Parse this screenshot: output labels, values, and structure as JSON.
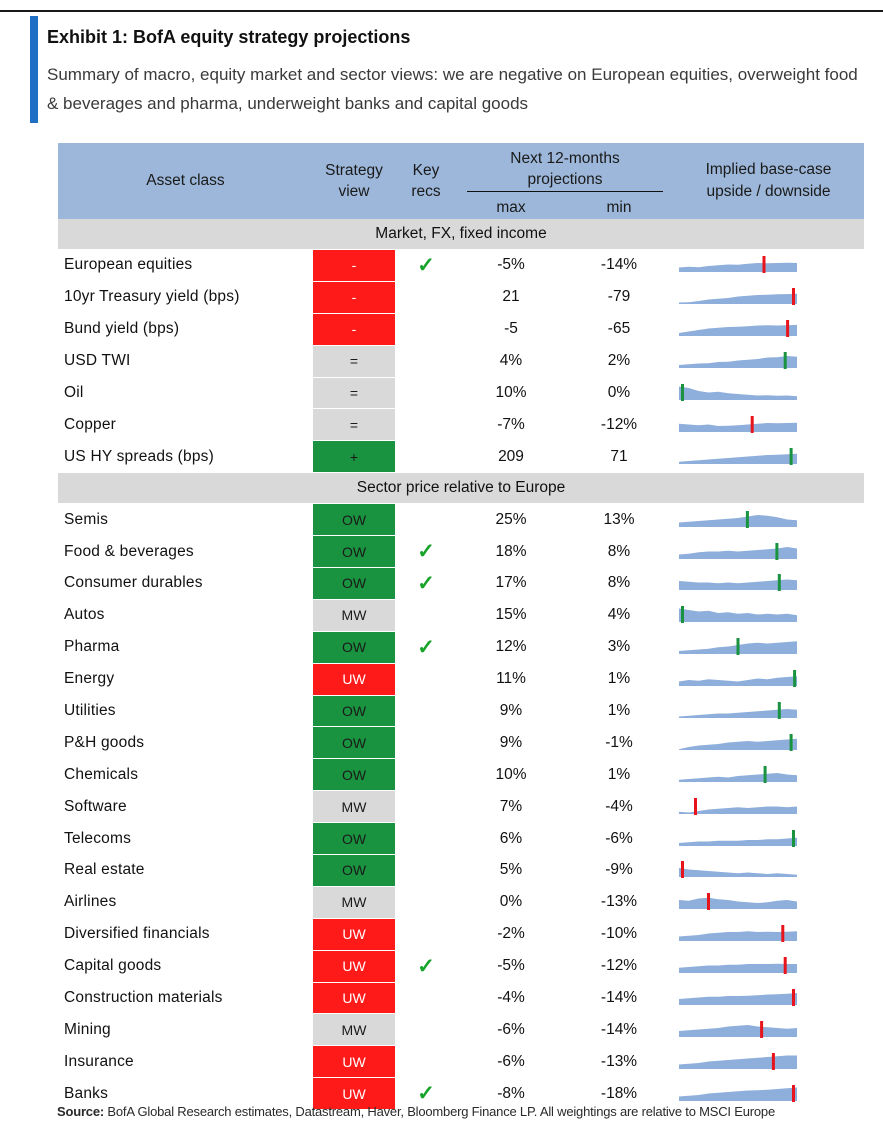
{
  "title": "Exhibit 1: BofA equity strategy projections",
  "subtitle": "Summary of macro, equity market and sector views: we are negative on European equities, overweight food & beverages and pharma, underweight banks and capital goods",
  "headers": {
    "asset_class": "Asset class",
    "strategy_view": "Strategy view",
    "key_recs": "Key recs",
    "projections": "Next 12-months projections",
    "max": "max",
    "min": "min",
    "implied": "Implied base-case upside / downside"
  },
  "sections": [
    {
      "label": "Market, FX, fixed income",
      "rows": [
        {
          "name": "European equities",
          "view": "-",
          "tone": "neg",
          "rec": "✓",
          "max": "-5%",
          "min": "-14%",
          "spark": [
            0.3,
            0.35,
            0.32,
            0.4,
            0.45,
            0.5,
            0.48,
            0.55,
            0.6,
            0.58,
            0.6,
            0.62,
            0.6
          ],
          "marker": 0.72,
          "mcolor": "#e8141c"
        },
        {
          "name": "10yr Treasury yield (bps)",
          "view": "-",
          "tone": "neg",
          "rec": "",
          "max": "21",
          "min": "-79",
          "spark": [
            0.1,
            0.12,
            0.2,
            0.3,
            0.35,
            0.4,
            0.5,
            0.55,
            0.6,
            0.62,
            0.65,
            0.66,
            0.68
          ],
          "marker": 0.97,
          "mcolor": "#e8141c"
        },
        {
          "name": "Bund yield (bps)",
          "view": "-",
          "tone": "neg",
          "rec": "",
          "max": "-5",
          "min": "-65",
          "spark": [
            0.2,
            0.3,
            0.4,
            0.5,
            0.55,
            0.6,
            0.62,
            0.65,
            0.7,
            0.72,
            0.7,
            0.72,
            0.74
          ],
          "marker": 0.92,
          "mcolor": "#e8141c"
        },
        {
          "name": "USD TWI",
          "view": "=",
          "tone": "neutral",
          "rec": "",
          "max": "4%",
          "min": "2%",
          "spark": [
            0.2,
            0.25,
            0.3,
            0.32,
            0.4,
            0.42,
            0.5,
            0.55,
            0.6,
            0.7,
            0.72,
            0.8,
            0.75
          ],
          "marker": 0.9,
          "mcolor": "#19933f"
        },
        {
          "name": "Oil",
          "view": "=",
          "tone": "neutral",
          "rec": "",
          "max": "10%",
          "min": "0%",
          "spark": [
            0.9,
            0.8,
            0.6,
            0.5,
            0.55,
            0.45,
            0.4,
            0.35,
            0.3,
            0.32,
            0.28,
            0.3,
            0.25
          ],
          "marker": 0.03,
          "mcolor": "#19933f"
        },
        {
          "name": "Copper",
          "view": "=",
          "tone": "neutral",
          "rec": "",
          "max": "-7%",
          "min": "-12%",
          "spark": [
            0.55,
            0.5,
            0.45,
            0.5,
            0.4,
            0.42,
            0.45,
            0.5,
            0.55,
            0.6,
            0.58,
            0.6,
            0.62
          ],
          "marker": 0.62,
          "mcolor": "#e8141c"
        },
        {
          "name": "US HY spreads (bps)",
          "view": "+",
          "tone": "pos",
          "rec": "",
          "max": "209",
          "min": "71",
          "spark": [
            0.15,
            0.2,
            0.25,
            0.3,
            0.35,
            0.4,
            0.45,
            0.5,
            0.55,
            0.6,
            0.62,
            0.65,
            0.68
          ],
          "marker": 0.95,
          "mcolor": "#19933f"
        }
      ]
    },
    {
      "label": "Sector price relative to Europe",
      "rows": [
        {
          "name": "Semis",
          "view": "OW",
          "tone": "pos",
          "rec": "",
          "max": "25%",
          "min": "13%",
          "spark": [
            0.3,
            0.35,
            0.4,
            0.45,
            0.5,
            0.55,
            0.6,
            0.7,
            0.8,
            0.75,
            0.65,
            0.5,
            0.45
          ],
          "marker": 0.58,
          "mcolor": "#19933f"
        },
        {
          "name": "Food & beverages",
          "view": "OW",
          "tone": "pos",
          "rec": "✓",
          "max": "18%",
          "min": "8%",
          "spark": [
            0.3,
            0.35,
            0.45,
            0.5,
            0.5,
            0.55,
            0.5,
            0.55,
            0.6,
            0.65,
            0.7,
            0.8,
            0.7
          ],
          "marker": 0.83,
          "mcolor": "#19933f"
        },
        {
          "name": "Consumer durables",
          "view": "OW",
          "tone": "pos",
          "rec": "✓",
          "max": "17%",
          "min": "8%",
          "spark": [
            0.6,
            0.55,
            0.5,
            0.5,
            0.45,
            0.5,
            0.45,
            0.5,
            0.55,
            0.6,
            0.65,
            0.7,
            0.65
          ],
          "marker": 0.85,
          "mcolor": "#19933f"
        },
        {
          "name": "Autos",
          "view": "MW",
          "tone": "neutral",
          "rec": "",
          "max": "15%",
          "min": "4%",
          "spark": [
            0.9,
            0.8,
            0.7,
            0.75,
            0.6,
            0.65,
            0.55,
            0.6,
            0.5,
            0.55,
            0.5,
            0.55,
            0.45
          ],
          "marker": 0.03,
          "mcolor": "#19933f"
        },
        {
          "name": "Pharma",
          "view": "OW",
          "tone": "pos",
          "rec": "✓",
          "max": "12%",
          "min": "3%",
          "spark": [
            0.2,
            0.25,
            0.3,
            0.35,
            0.45,
            0.5,
            0.6,
            0.7,
            0.75,
            0.7,
            0.75,
            0.8,
            0.85
          ],
          "marker": 0.5,
          "mcolor": "#19933f"
        },
        {
          "name": "Energy",
          "view": "UW",
          "tone": "neg",
          "rec": "",
          "max": "11%",
          "min": "1%",
          "spark": [
            0.3,
            0.4,
            0.35,
            0.45,
            0.4,
            0.35,
            0.3,
            0.4,
            0.5,
            0.45,
            0.55,
            0.6,
            0.65
          ],
          "marker": 0.98,
          "mcolor": "#19933f"
        },
        {
          "name": "Utilities",
          "view": "OW",
          "tone": "pos",
          "rec": "",
          "max": "9%",
          "min": "1%",
          "spark": [
            0.1,
            0.15,
            0.2,
            0.25,
            0.3,
            0.3,
            0.35,
            0.4,
            0.45,
            0.5,
            0.55,
            0.6,
            0.55
          ],
          "marker": 0.85,
          "mcolor": "#19933f"
        },
        {
          "name": "P&H goods",
          "view": "OW",
          "tone": "pos",
          "rec": "",
          "max": "9%",
          "min": "-1%",
          "spark": [
            0.05,
            0.2,
            0.3,
            0.35,
            0.4,
            0.5,
            0.55,
            0.6,
            0.55,
            0.6,
            0.65,
            0.7,
            0.75
          ],
          "marker": 0.95,
          "mcolor": "#19933f"
        },
        {
          "name": "Chemicals",
          "view": "OW",
          "tone": "pos",
          "rec": "",
          "max": "10%",
          "min": "1%",
          "spark": [
            0.15,
            0.2,
            0.25,
            0.3,
            0.35,
            0.3,
            0.4,
            0.45,
            0.5,
            0.55,
            0.6,
            0.5,
            0.45
          ],
          "marker": 0.73,
          "mcolor": "#19933f"
        },
        {
          "name": "Software",
          "view": "MW",
          "tone": "neutral",
          "rec": "",
          "max": "7%",
          "min": "-4%",
          "spark": [
            0.15,
            0.1,
            0.2,
            0.3,
            0.35,
            0.4,
            0.45,
            0.4,
            0.45,
            0.5,
            0.5,
            0.45,
            0.5
          ],
          "marker": 0.14,
          "mcolor": "#e8141c"
        },
        {
          "name": "Telecoms",
          "view": "OW",
          "tone": "pos",
          "rec": "",
          "max": "6%",
          "min": "-6%",
          "spark": [
            0.2,
            0.25,
            0.3,
            0.3,
            0.35,
            0.35,
            0.35,
            0.4,
            0.4,
            0.45,
            0.45,
            0.5,
            0.55
          ],
          "marker": 0.97,
          "mcolor": "#19933f"
        },
        {
          "name": "Real estate",
          "view": "OW",
          "tone": "pos",
          "rec": "",
          "max": "5%",
          "min": "-9%",
          "spark": [
            0.6,
            0.5,
            0.45,
            0.4,
            0.35,
            0.3,
            0.25,
            0.3,
            0.25,
            0.2,
            0.25,
            0.2,
            0.15
          ],
          "marker": 0.03,
          "mcolor": "#e8141c"
        },
        {
          "name": "Airlines",
          "view": "MW",
          "tone": "neutral",
          "rec": "",
          "max": "0%",
          "min": "-13%",
          "spark": [
            0.6,
            0.55,
            0.7,
            0.75,
            0.65,
            0.6,
            0.5,
            0.45,
            0.4,
            0.45,
            0.55,
            0.6,
            0.5
          ],
          "marker": 0.25,
          "mcolor": "#e8141c"
        },
        {
          "name": "Diversified financials",
          "view": "UW",
          "tone": "neg",
          "rec": "",
          "max": "-2%",
          "min": "-10%",
          "spark": [
            0.3,
            0.35,
            0.4,
            0.5,
            0.55,
            0.6,
            0.6,
            0.65,
            0.6,
            0.62,
            0.6,
            0.62,
            0.65
          ],
          "marker": 0.88,
          "mcolor": "#e8141c"
        },
        {
          "name": "Capital goods",
          "view": "UW",
          "tone": "neg",
          "rec": "✓",
          "max": "-5%",
          "min": "-12%",
          "spark": [
            0.35,
            0.4,
            0.45,
            0.5,
            0.5,
            0.55,
            0.55,
            0.6,
            0.6,
            0.6,
            0.62,
            0.6,
            0.6
          ],
          "marker": 0.9,
          "mcolor": "#e8141c"
        },
        {
          "name": "Construction materials",
          "view": "UW",
          "tone": "neg",
          "rec": "",
          "max": "-4%",
          "min": "-14%",
          "spark": [
            0.4,
            0.45,
            0.5,
            0.55,
            0.55,
            0.6,
            0.6,
            0.62,
            0.65,
            0.7,
            0.72,
            0.75,
            0.8
          ],
          "marker": 0.97,
          "mcolor": "#e8141c"
        },
        {
          "name": "Mining",
          "view": "MW",
          "tone": "neutral",
          "rec": "",
          "max": "-6%",
          "min": "-14%",
          "spark": [
            0.4,
            0.45,
            0.5,
            0.55,
            0.6,
            0.7,
            0.75,
            0.8,
            0.7,
            0.65,
            0.6,
            0.55,
            0.6
          ],
          "marker": 0.7,
          "mcolor": "#e8141c"
        },
        {
          "name": "Insurance",
          "view": "UW",
          "tone": "neg",
          "rec": "",
          "max": "-6%",
          "min": "-13%",
          "spark": [
            0.3,
            0.35,
            0.4,
            0.5,
            0.55,
            0.6,
            0.65,
            0.7,
            0.75,
            0.8,
            0.85,
            0.9,
            0.9
          ],
          "marker": 0.8,
          "mcolor": "#e8141c"
        },
        {
          "name": "Banks",
          "view": "UW",
          "tone": "neg",
          "rec": "✓",
          "max": "-8%",
          "min": "-18%",
          "spark": [
            0.3,
            0.35,
            0.4,
            0.5,
            0.55,
            0.6,
            0.65,
            0.7,
            0.72,
            0.75,
            0.8,
            0.85,
            0.9
          ],
          "marker": 0.97,
          "mcolor": "#e8141c"
        }
      ]
    }
  ],
  "footer": {
    "source_label": "Source:",
    "source_text": " BofA Global Research estimates, Datastream, Haver, Bloomberg Finance LP. All weightings are relative to MSCI Europe"
  }
}
